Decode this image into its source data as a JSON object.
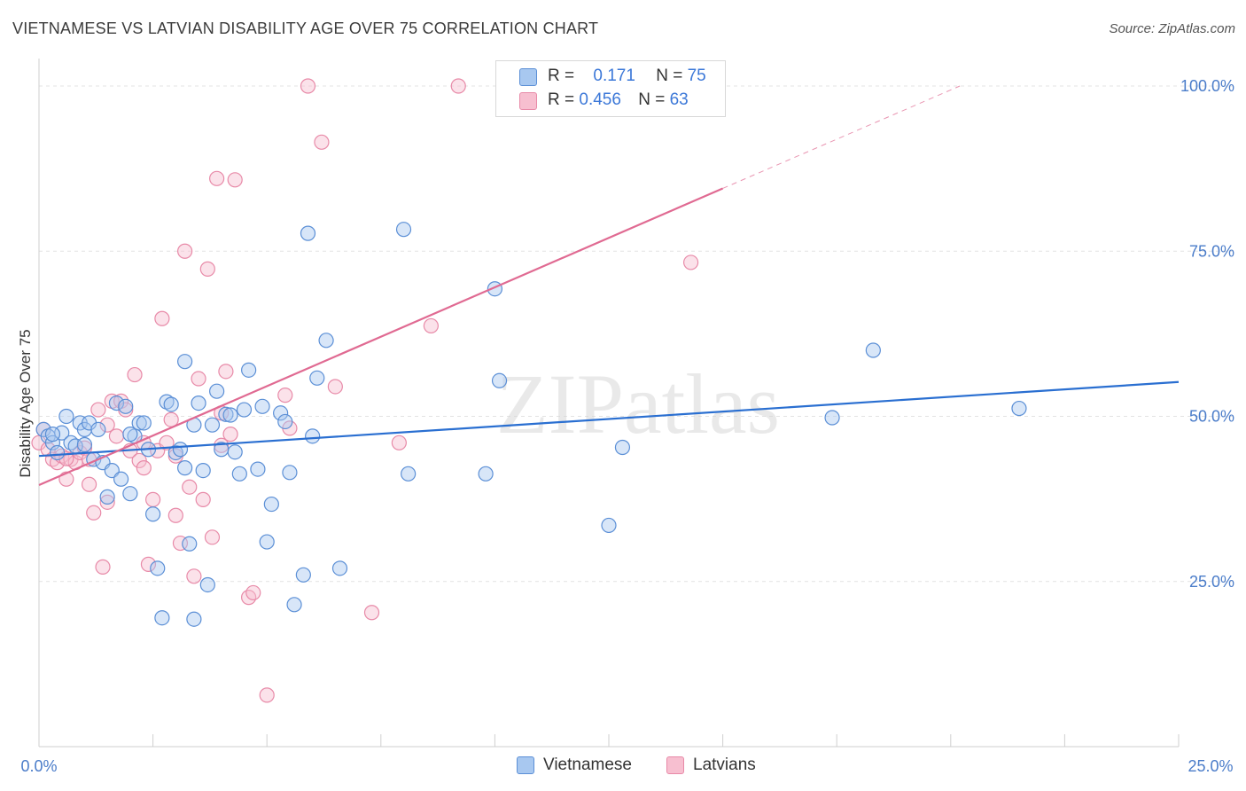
{
  "title": "VIETNAMESE VS LATVIAN DISABILITY AGE OVER 75 CORRELATION CHART",
  "source": "Source: ZipAtlas.com",
  "watermark": "ZIPatlas",
  "colors": {
    "vietnamese_fill": "#a8c8f0",
    "vietnamese_stroke": "#5b8fd6",
    "vietnamese_line": "#2a6fd1",
    "latvian_fill": "#f7bfd0",
    "latvian_stroke": "#e88aa8",
    "latvian_line": "#e06a92",
    "axis_text": "#4a7cc9"
  },
  "legend": {
    "rows": [
      {
        "r_label": "R =",
        "r_value": "0.171",
        "n_label": "N =",
        "n_value": "75"
      },
      {
        "r_label": "R =",
        "r_value": "0.456",
        "n_label": "N =",
        "n_value": "63"
      }
    ]
  },
  "bottom_legend": {
    "vietnamese": "Vietnamese",
    "latvians": "Latvians"
  },
  "chart_data": {
    "type": "scatter",
    "title": "VIETNAMESE VS LATVIAN DISABILITY AGE OVER 75 CORRELATION CHART",
    "xlabel": "",
    "ylabel": "Disability Age Over 75",
    "xlim": [
      0,
      25
    ],
    "ylim": [
      0,
      105
    ],
    "x_tick_labels": [
      "0.0%",
      "25.0%"
    ],
    "y_ticks": [
      25,
      50,
      75,
      100
    ],
    "y_tick_labels": [
      "25.0%",
      "50.0%",
      "75.0%",
      "100.0%"
    ],
    "grid": "horizontal dashed",
    "legend_placement": "top-center",
    "series": [
      {
        "name": "Vietnamese",
        "r": 0.171,
        "n": 75,
        "trend": {
          "x": [
            0,
            25
          ],
          "y": [
            44.0,
            55.2
          ]
        },
        "points": [
          [
            0.1,
            48.0
          ],
          [
            0.2,
            47.0
          ],
          [
            0.3,
            46.0
          ],
          [
            0.4,
            44.5
          ],
          [
            0.5,
            47.5
          ],
          [
            0.6,
            50.0
          ],
          [
            0.7,
            46.0
          ],
          [
            0.8,
            45.5
          ],
          [
            0.9,
            49.0
          ],
          [
            1.0,
            48.0
          ],
          [
            1.1,
            49.0
          ],
          [
            1.2,
            43.5
          ],
          [
            1.3,
            48.0
          ],
          [
            1.4,
            43.0
          ],
          [
            1.5,
            37.8
          ],
          [
            1.6,
            41.8
          ],
          [
            1.7,
            52.0
          ],
          [
            1.8,
            40.5
          ],
          [
            1.9,
            51.5
          ],
          [
            2.0,
            38.3
          ],
          [
            2.1,
            47.0
          ],
          [
            2.2,
            49.0
          ],
          [
            2.3,
            49.0
          ],
          [
            2.4,
            45.0
          ],
          [
            2.5,
            35.2
          ],
          [
            2.6,
            27.0
          ],
          [
            2.7,
            19.5
          ],
          [
            2.8,
            52.2
          ],
          [
            2.9,
            51.8
          ],
          [
            3.0,
            44.5
          ],
          [
            3.1,
            45.0
          ],
          [
            3.2,
            42.2
          ],
          [
            3.3,
            30.7
          ],
          [
            3.4,
            48.7
          ],
          [
            3.5,
            52.0
          ],
          [
            3.6,
            41.8
          ],
          [
            3.7,
            24.5
          ],
          [
            3.8,
            48.7
          ],
          [
            3.9,
            53.8
          ],
          [
            4.0,
            45.0
          ],
          [
            4.1,
            50.3
          ],
          [
            4.2,
            50.2
          ],
          [
            4.3,
            44.6
          ],
          [
            4.4,
            41.3
          ],
          [
            4.5,
            51.0
          ],
          [
            4.6,
            57.0
          ],
          [
            4.8,
            42.0
          ],
          [
            4.9,
            51.5
          ],
          [
            5.0,
            31.0
          ],
          [
            5.1,
            36.7
          ],
          [
            5.3,
            50.5
          ],
          [
            5.4,
            49.2
          ],
          [
            5.5,
            41.5
          ],
          [
            5.6,
            21.5
          ],
          [
            5.8,
            26.0
          ],
          [
            5.9,
            77.7
          ],
          [
            6.0,
            47.0
          ],
          [
            6.1,
            55.8
          ],
          [
            6.3,
            61.5
          ],
          [
            6.6,
            27.0
          ],
          [
            8.0,
            78.3
          ],
          [
            8.1,
            41.3
          ],
          [
            9.8,
            41.3
          ],
          [
            10.0,
            69.3
          ],
          [
            10.1,
            55.4
          ],
          [
            12.5,
            33.5
          ],
          [
            12.8,
            45.3
          ],
          [
            17.4,
            49.8
          ],
          [
            18.3,
            60.0
          ],
          [
            21.5,
            51.2
          ],
          [
            3.2,
            58.3
          ],
          [
            3.4,
            19.3
          ],
          [
            0.3,
            47.3
          ],
          [
            1.0,
            45.7
          ],
          [
            2.0,
            47.3
          ]
        ]
      },
      {
        "name": "Latvians",
        "r": 0.456,
        "n": 63,
        "trend": {
          "x": [
            0,
            15
          ],
          "y": [
            39.6,
            84.5
          ]
        },
        "trend_dashed": {
          "x": [
            15,
            20.2
          ],
          "y": [
            84.5,
            100.0
          ]
        },
        "points": [
          [
            0.0,
            46.0
          ],
          [
            0.1,
            48.0
          ],
          [
            0.2,
            45.0
          ],
          [
            0.3,
            43.5
          ],
          [
            0.4,
            43.0
          ],
          [
            0.5,
            44.0
          ],
          [
            0.6,
            40.5
          ],
          [
            0.7,
            43.5
          ],
          [
            0.8,
            43.0
          ],
          [
            0.9,
            44.5
          ],
          [
            1.0,
            45.2
          ],
          [
            1.1,
            39.7
          ],
          [
            1.2,
            35.4
          ],
          [
            1.3,
            51.0
          ],
          [
            1.4,
            27.2
          ],
          [
            1.5,
            48.7
          ],
          [
            1.6,
            52.3
          ],
          [
            1.7,
            47.0
          ],
          [
            1.8,
            52.3
          ],
          [
            1.9,
            51.0
          ],
          [
            2.0,
            44.8
          ],
          [
            2.1,
            56.3
          ],
          [
            2.2,
            43.3
          ],
          [
            2.3,
            42.2
          ],
          [
            2.4,
            27.6
          ],
          [
            2.5,
            37.4
          ],
          [
            2.6,
            44.8
          ],
          [
            2.7,
            64.8
          ],
          [
            2.8,
            46.0
          ],
          [
            2.9,
            49.5
          ],
          [
            3.0,
            35.0
          ],
          [
            3.1,
            30.8
          ],
          [
            3.2,
            75.0
          ],
          [
            3.3,
            39.3
          ],
          [
            3.4,
            25.8
          ],
          [
            3.5,
            55.7
          ],
          [
            3.6,
            37.4
          ],
          [
            3.7,
            72.3
          ],
          [
            3.8,
            31.7
          ],
          [
            3.9,
            86.0
          ],
          [
            4.0,
            45.6
          ],
          [
            4.1,
            56.8
          ],
          [
            4.2,
            47.3
          ],
          [
            4.3,
            85.8
          ],
          [
            4.6,
            22.6
          ],
          [
            4.7,
            23.3
          ],
          [
            5.0,
            7.8
          ],
          [
            5.4,
            53.2
          ],
          [
            5.5,
            48.2
          ],
          [
            5.9,
            100.0
          ],
          [
            6.2,
            91.5
          ],
          [
            6.5,
            54.5
          ],
          [
            7.3,
            20.3
          ],
          [
            7.9,
            46.0
          ],
          [
            8.6,
            63.7
          ],
          [
            9.2,
            100.0
          ],
          [
            14.3,
            73.3
          ],
          [
            1.1,
            43.5
          ],
          [
            0.6,
            43.6
          ],
          [
            2.3,
            46.0
          ],
          [
            3.0,
            44.0
          ],
          [
            1.5,
            37.0
          ],
          [
            4.0,
            50.5
          ]
        ]
      }
    ]
  }
}
